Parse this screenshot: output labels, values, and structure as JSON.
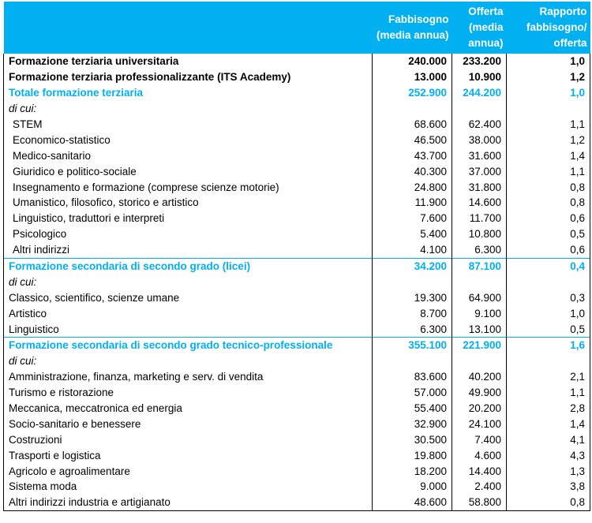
{
  "header": {
    "col_label": "",
    "fabbisogno": "Fabbisogno (media annua)",
    "offerta": "Offerta (media annua)",
    "rapporto": "Rapporto fabbisogno/ offerta"
  },
  "rows": [
    {
      "label": "Formazione terziaria universitaria",
      "f": "240.000",
      "o": "233.200",
      "r": "1,0",
      "style": "bold"
    },
    {
      "label": "Formazione terziaria professionalizzante (ITS Academy)",
      "f": "13.000",
      "o": "10.900",
      "r": "1,2",
      "style": "bold"
    },
    {
      "label": "Totale formazione terziaria",
      "f": "252.900",
      "o": "244.200",
      "r": "1,0",
      "style": "blue-first"
    },
    {
      "label": "di cui:",
      "f": "",
      "o": "",
      "r": "",
      "style": "italic"
    },
    {
      "label": "STEM",
      "f": "68.600",
      "o": "62.400",
      "r": "1,1",
      "style": "sub"
    },
    {
      "label": "Economico-statistico",
      "f": "46.500",
      "o": "38.000",
      "r": "1,2",
      "style": "sub"
    },
    {
      "label": "Medico-sanitario",
      "f": "43.700",
      "o": "31.600",
      "r": "1,4",
      "style": "sub"
    },
    {
      "label": "Giuridico e politico-sociale",
      "f": "40.300",
      "o": "37.000",
      "r": "1,1",
      "style": "sub"
    },
    {
      "label": "Insegnamento e formazione (comprese scienze motorie)",
      "f": "24.800",
      "o": "31.800",
      "r": "0,8",
      "style": "sub"
    },
    {
      "label": "Umanistico, filosofico, storico e artistico",
      "f": "11.900",
      "o": "14.600",
      "r": "0,8",
      "style": "sub"
    },
    {
      "label": "Linguistico, traduttori e interpreti",
      "f": "7.600",
      "o": "11.700",
      "r": "0,6",
      "style": "sub"
    },
    {
      "label": "Psicologico",
      "f": "5.400",
      "o": "10.800",
      "r": "0,5",
      "style": "sub"
    },
    {
      "label": "Altri indirizzi",
      "f": "4.100",
      "o": "6.300",
      "r": "0,6",
      "style": "sub"
    },
    {
      "label": "Formazione secondaria di secondo grado (licei)",
      "f": "34.200",
      "o": "87.100",
      "r": "0,4",
      "style": "blue"
    },
    {
      "label": "di cui:",
      "f": "",
      "o": "",
      "r": "",
      "style": "italic"
    },
    {
      "label": "Classico, scientifico, scienze umane",
      "f": "19.300",
      "o": "64.900",
      "r": "0,3",
      "style": "plain"
    },
    {
      "label": "Artistico",
      "f": "8.700",
      "o": "9.100",
      "r": "1,0",
      "style": "plain"
    },
    {
      "label": "Linguistico",
      "f": "6.300",
      "o": "13.100",
      "r": "0,5",
      "style": "plain"
    },
    {
      "label": "Formazione secondaria di secondo grado tecnico-professionale",
      "f": "355.100",
      "o": "221.900",
      "r": "1,6",
      "style": "blue"
    },
    {
      "label": "di cui:",
      "f": "",
      "o": "",
      "r": "",
      "style": "italic"
    },
    {
      "label": "Amministrazione, finanza, marketing e serv. di vendita",
      "f": "83.600",
      "o": "40.200",
      "r": "2,1",
      "style": "plain"
    },
    {
      "label": "Turismo e ristorazione",
      "f": "57.000",
      "o": "49.900",
      "r": "1,1",
      "style": "plain"
    },
    {
      "label": "Meccanica, meccatronica ed energia",
      "f": "55.400",
      "o": "20.200",
      "r": "2,8",
      "style": "plain"
    },
    {
      "label": "Socio-sanitario e benessere",
      "f": "32.900",
      "o": "24.100",
      "r": "1,4",
      "style": "plain"
    },
    {
      "label": "Costruzioni",
      "f": "30.500",
      "o": "7.400",
      "r": "4,1",
      "style": "plain"
    },
    {
      "label": "Trasporti e logistica",
      "f": "19.800",
      "o": "4.600",
      "r": "4,3",
      "style": "plain"
    },
    {
      "label": "Agricolo e agroalimentare",
      "f": "18.200",
      "o": "14.400",
      "r": "1,3",
      "style": "plain"
    },
    {
      "label": "Sistema moda",
      "f": "9.000",
      "o": "2.400",
      "r": "3,8",
      "style": "plain"
    },
    {
      "label": "Altri indirizzi industria e artigianato",
      "f": "48.600",
      "o": "58.800",
      "r": "0,8",
      "style": "plain"
    }
  ]
}
